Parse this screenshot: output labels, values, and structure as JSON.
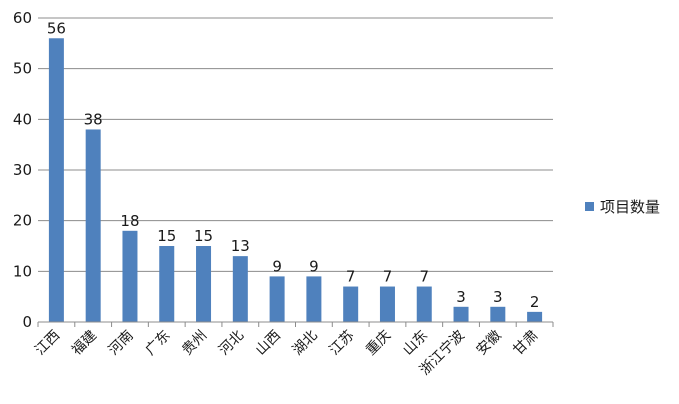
{
  "chart_data": {
    "type": "bar",
    "categories": [
      "江西",
      "福建",
      "河南",
      "广东",
      "贵州",
      "河北",
      "山西",
      "湖北",
      "江苏",
      "重庆",
      "山东",
      "浙江宁波",
      "安徽",
      "甘肃"
    ],
    "series": [
      {
        "name": "项目数量",
        "values": [
          56,
          38,
          18,
          15,
          15,
          13,
          9,
          9,
          7,
          7,
          7,
          3,
          3,
          2
        ],
        "color": "#4f81bd"
      }
    ],
    "title": "",
    "xlabel": "",
    "ylabel": "",
    "ylim": [
      0,
      60
    ],
    "yticks": [
      0,
      10,
      20,
      30,
      40,
      50,
      60
    ],
    "grid": true,
    "legend_position": "right",
    "data_labels": true
  }
}
